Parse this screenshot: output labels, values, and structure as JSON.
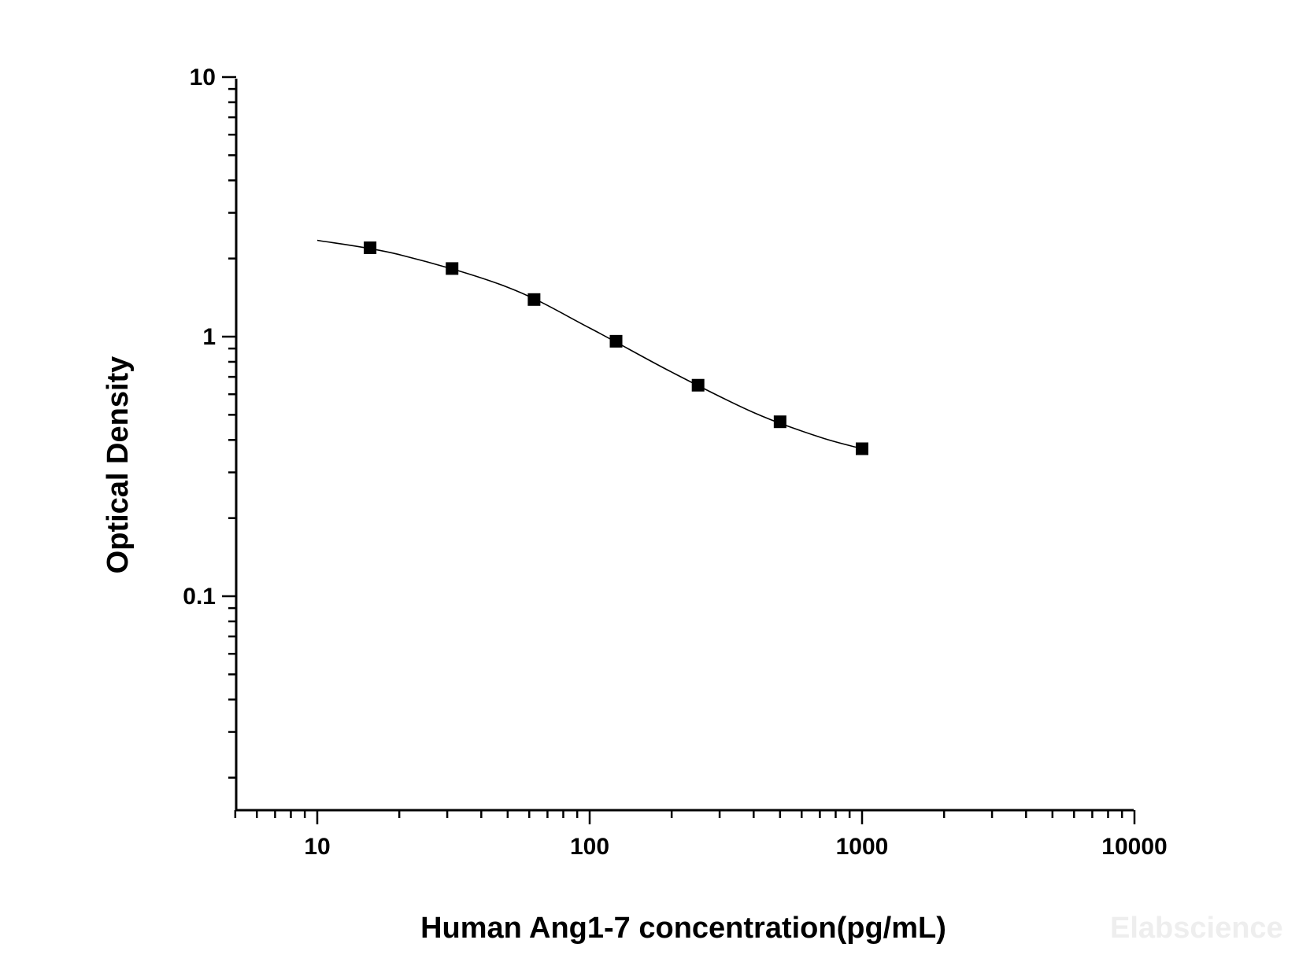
{
  "chart_data": {
    "type": "scatter",
    "xlabel": "Human Ang1-7 concentration(pg/mL)",
    "ylabel": "Optical Density",
    "x_scale": "log",
    "y_scale": "log",
    "xlim": [
      5,
      10000
    ],
    "ylim": [
      0.015,
      10
    ],
    "x_ticks": [
      {
        "value": 10,
        "label": "10"
      },
      {
        "value": 100,
        "label": "100"
      },
      {
        "value": 1000,
        "label": "1000"
      },
      {
        "value": 10000,
        "label": "10000"
      }
    ],
    "y_ticks": [
      {
        "value": 0.1,
        "label": "0.1"
      },
      {
        "value": 1,
        "label": "1"
      },
      {
        "value": 10,
        "label": "10"
      }
    ],
    "series": [
      {
        "marker": "square",
        "color": "#000000",
        "x": [
          15.63,
          31.25,
          62.5,
          125,
          250,
          500,
          1000
        ],
        "y": [
          2.2,
          1.83,
          1.39,
          0.96,
          0.65,
          0.47,
          0.37
        ]
      }
    ],
    "fit_curve": {
      "x": [
        10,
        20,
        50,
        100,
        200,
        400,
        700,
        1000
      ],
      "y": [
        2.35,
        2.07,
        1.55,
        1.08,
        0.73,
        0.51,
        0.41,
        0.37
      ]
    },
    "grid": false,
    "legend": "none"
  },
  "watermark": "Elabscience"
}
